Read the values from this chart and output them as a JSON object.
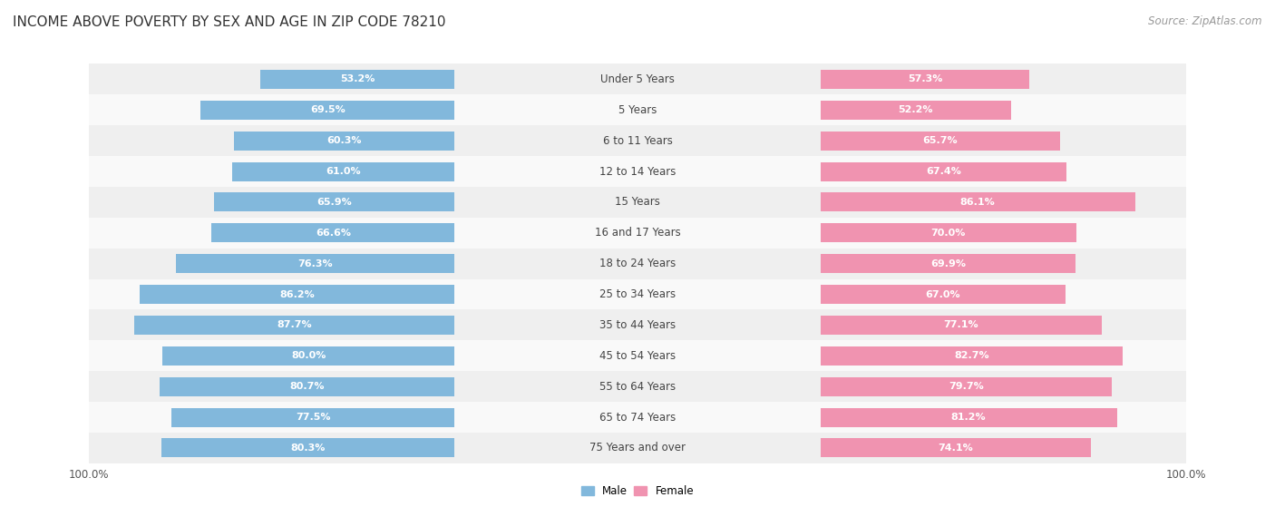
{
  "title": "INCOME ABOVE POVERTY BY SEX AND AGE IN ZIP CODE 78210",
  "source": "Source: ZipAtlas.com",
  "categories": [
    "Under 5 Years",
    "5 Years",
    "6 to 11 Years",
    "12 to 14 Years",
    "15 Years",
    "16 and 17 Years",
    "18 to 24 Years",
    "25 to 34 Years",
    "35 to 44 Years",
    "45 to 54 Years",
    "55 to 64 Years",
    "65 to 74 Years",
    "75 Years and over"
  ],
  "male_values": [
    53.2,
    69.5,
    60.3,
    61.0,
    65.9,
    66.6,
    76.3,
    86.2,
    87.7,
    80.0,
    80.7,
    77.5,
    80.3
  ],
  "female_values": [
    57.3,
    52.2,
    65.7,
    67.4,
    86.1,
    70.0,
    69.9,
    67.0,
    77.1,
    82.7,
    79.7,
    81.2,
    74.1
  ],
  "male_color": "#82b8dc",
  "female_color": "#f093b0",
  "male_color_light": "#b8d6ec",
  "female_color_light": "#f7bdd0",
  "row_bg_odd": "#efefef",
  "row_bg_even": "#f9f9f9",
  "title_fontsize": 11,
  "source_fontsize": 8.5,
  "cat_fontsize": 8.5,
  "bar_label_fontsize": 8.0,
  "axis_label_fontsize": 8.5,
  "max_value": 100.0
}
